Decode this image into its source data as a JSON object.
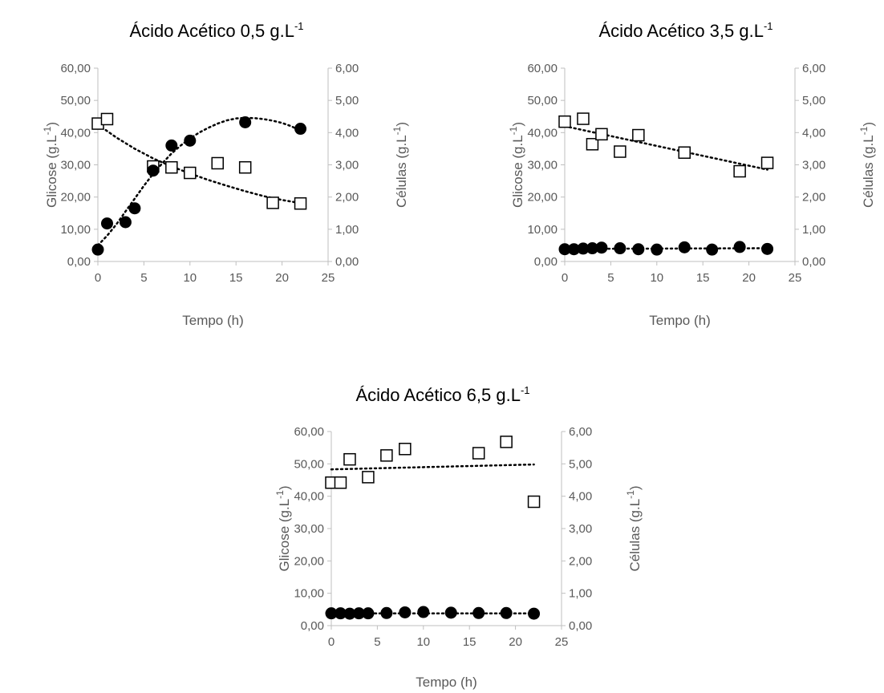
{
  "chart_data": [
    {
      "type": "scatter",
      "title": "Ácido Acético 0,5 g.L",
      "title_sup": "-1",
      "xlabel": "Tempo (h)",
      "ylabel_left": "Glicose (g.L",
      "ylabel_right": "Células (g.L",
      "ylabel_sup": "-1",
      "ylabel_close": ")",
      "xlim": [
        0,
        25
      ],
      "xticks": [
        "0",
        "5",
        "10",
        "15",
        "20",
        "25"
      ],
      "ylim_left": [
        0,
        60
      ],
      "yticks_left": [
        "0,00",
        "10,00",
        "20,00",
        "30,00",
        "40,00",
        "50,00",
        "60,00"
      ],
      "ylim_right": [
        0,
        6
      ],
      "yticks_right": [
        "0,00",
        "1,00",
        "2,00",
        "3,00",
        "4,00",
        "5,00",
        "6,00"
      ],
      "grid": false,
      "series": [
        {
          "marker": "open-square",
          "axis": "left",
          "x": [
            0,
            1,
            6,
            8,
            10,
            13,
            16,
            19,
            22
          ],
          "y": [
            42.8,
            44.2,
            29.5,
            29.2,
            27.5,
            30.5,
            29.2,
            18.2,
            18.0
          ],
          "trendline": "decreasing polynomial (dotted)",
          "trend_samples": {
            "x": [
              0,
              2,
              4,
              6,
              8,
              10,
              12,
              14,
              16,
              18,
              20,
              22
            ],
            "y": [
              42.5,
              38.5,
              35.0,
              32.0,
              29.5,
              27.3,
              25.3,
              23.5,
              21.8,
              20.3,
              19.1,
              18.1
            ]
          }
        },
        {
          "marker": "filled-circle",
          "axis": "right",
          "x": [
            0,
            1,
            3,
            4,
            6,
            8,
            10,
            16,
            22
          ],
          "y": [
            0.37,
            1.18,
            1.22,
            1.65,
            2.82,
            3.6,
            3.75,
            4.32,
            4.12
          ],
          "trendline": "polynomial (dotted)",
          "trend_samples": {
            "x": [
              0,
              1,
              2,
              3,
              4,
              5,
              6,
              7,
              8,
              9,
              10,
              11,
              12,
              13,
              14,
              15,
              16,
              17,
              18,
              19,
              20,
              21,
              22
            ],
            "y": [
              0.5,
              0.8,
              1.15,
              1.55,
              1.95,
              2.35,
              2.72,
              3.05,
              3.35,
              3.6,
              3.82,
              4.0,
              4.15,
              4.28,
              4.38,
              4.44,
              4.46,
              4.45,
              4.42,
              4.37,
              4.3,
              4.2,
              4.05
            ]
          }
        }
      ]
    },
    {
      "type": "scatter",
      "title": "Ácido Acético 3,5 g.L",
      "title_sup": "-1",
      "xlabel": "Tempo (h)",
      "ylabel_left": "Glicose (g.L",
      "ylabel_right": "Células (g.L",
      "ylabel_sup": "-1",
      "ylabel_close": ")",
      "xlim": [
        0,
        25
      ],
      "xticks": [
        "0",
        "5",
        "10",
        "15",
        "20",
        "25"
      ],
      "ylim_left": [
        0,
        60
      ],
      "yticks_left": [
        "0,00",
        "10,00",
        "20,00",
        "30,00",
        "40,00",
        "50,00",
        "60,00"
      ],
      "ylim_right": [
        0,
        6
      ],
      "yticks_right": [
        "0,00",
        "1,00",
        "2,00",
        "3,00",
        "4,00",
        "5,00",
        "6,00"
      ],
      "grid": false,
      "series": [
        {
          "marker": "open-square",
          "axis": "left",
          "x": [
            0,
            2,
            3,
            4,
            6,
            8,
            13,
            19,
            22
          ],
          "y": [
            43.4,
            44.3,
            36.4,
            39.5,
            34.1,
            39.2,
            33.8,
            28.0,
            30.6
          ],
          "trendline": "linear (dotted)",
          "trend_samples": {
            "x": [
              0,
              22
            ],
            "y": [
              42.0,
              28.5
            ]
          }
        },
        {
          "marker": "filled-circle",
          "axis": "right",
          "x": [
            0,
            1,
            2,
            3,
            4,
            6,
            8,
            10,
            13,
            16,
            19,
            22
          ],
          "y": [
            0.38,
            0.38,
            0.4,
            0.41,
            0.43,
            0.41,
            0.38,
            0.37,
            0.44,
            0.37,
            0.45,
            0.39
          ],
          "trendline": "linear (dotted)",
          "trend_samples": {
            "x": [
              0,
              22
            ],
            "y": [
              0.39,
              0.41
            ]
          }
        }
      ]
    },
    {
      "type": "scatter",
      "title": "Ácido Acético 6,5 g.L",
      "title_sup": "-1",
      "xlabel": "Tempo (h)",
      "ylabel_left": "Glicose (g.L",
      "ylabel_right": "Células (g.L",
      "ylabel_sup": "-1",
      "ylabel_close": ")",
      "xlim": [
        0,
        25
      ],
      "xticks": [
        "0",
        "5",
        "10",
        "15",
        "20",
        "25"
      ],
      "ylim_left": [
        0,
        60
      ],
      "yticks_left": [
        "0,00",
        "10,00",
        "20,00",
        "30,00",
        "40,00",
        "50,00",
        "60,00"
      ],
      "ylim_right": [
        0,
        6
      ],
      "yticks_right": [
        "0,00",
        "1,00",
        "2,00",
        "3,00",
        "4,00",
        "5,00",
        "6,00"
      ],
      "grid": false,
      "series": [
        {
          "marker": "open-square",
          "axis": "left",
          "x": [
            0,
            1,
            2,
            4,
            6,
            8,
            16,
            19,
            22
          ],
          "y": [
            44.2,
            44.2,
            51.4,
            45.9,
            52.6,
            54.6,
            53.3,
            56.8,
            38.3
          ],
          "trendline": "linear (dotted)",
          "trend_samples": {
            "x": [
              0,
              22
            ],
            "y": [
              48.3,
              49.8
            ]
          }
        },
        {
          "marker": "filled-circle",
          "axis": "right",
          "x": [
            0,
            1,
            2,
            3,
            4,
            6,
            8,
            10,
            13,
            16,
            19,
            22
          ],
          "y": [
            0.38,
            0.38,
            0.37,
            0.38,
            0.38,
            0.39,
            0.41,
            0.42,
            0.4,
            0.39,
            0.39,
            0.37
          ],
          "trendline": "linear (dotted)",
          "trend_samples": {
            "x": [
              0,
              22
            ],
            "y": [
              0.38,
              0.38
            ]
          }
        }
      ]
    }
  ]
}
